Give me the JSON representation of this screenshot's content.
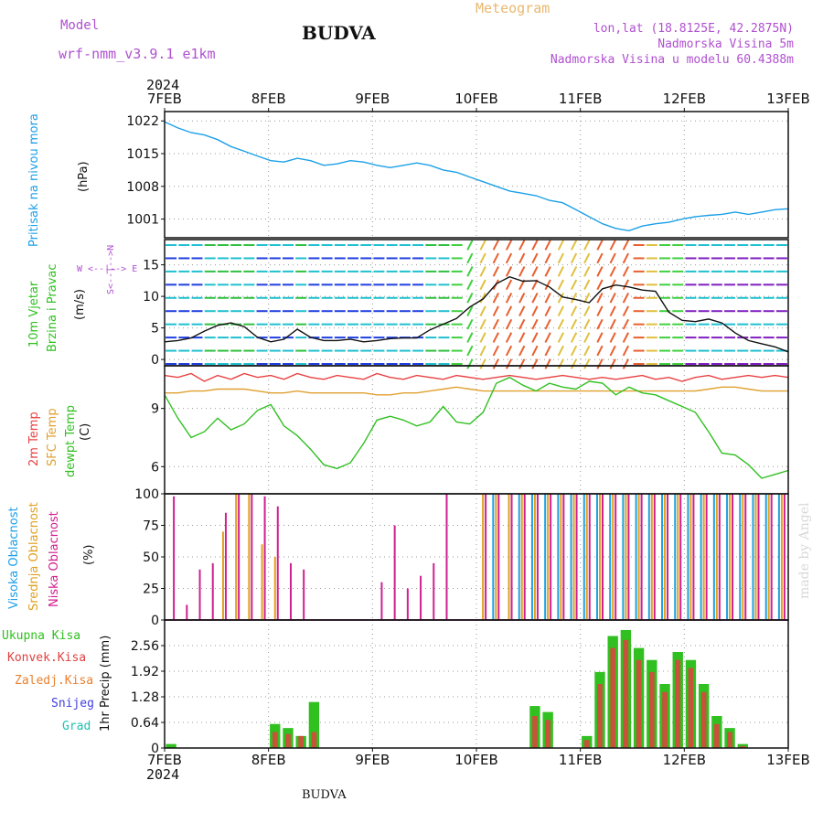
{
  "header": {
    "model_label": "Model",
    "model_name": "wrf-nmm_v3.9.1 e1km",
    "station": "BUDVA",
    "meteogram": "Meteogram",
    "lonlat": "lon,lat (18.8125E, 42.2875N)",
    "elevation": "Nadmorska Visina 5m",
    "model_elevation": "Nadmorska Visina u modelu 60.4388m",
    "footer_station": "BUDVA",
    "watermark": "made by Angel"
  },
  "time_axis": {
    "year": "2024",
    "labels": [
      "7FEB",
      "8FEB",
      "9FEB",
      "10FEB",
      "11FEB",
      "12FEB",
      "13FEB"
    ]
  },
  "panel_labels": {
    "pressure": "Pritisak na nivou mora",
    "pressure_unit": "(hPa)",
    "wind_line1": "10m Vjetar",
    "wind_line2": "Brzina i Pravac",
    "wind_unit": "(m/s)",
    "compass": "W <--|--> E",
    "compass_n": "N",
    "compass_s": "S",
    "temp_2m": "2m Temp",
    "temp_sfc": "SFC Temp",
    "temp_dew": "dewpt Temp",
    "temp_unit": "(C)",
    "cloud_high": "Visoka Oblacnost",
    "cloud_mid": "Srednja Oblacnost",
    "cloud_low": "Niska Oblacnost",
    "cloud_unit": "(%)",
    "precip_unit": "1hr Precip (mm)",
    "precip_legend": [
      "Ukupna Kisa",
      "Konvek.Kisa",
      "Zaledj.Kisa",
      "Snijeg",
      "Grad"
    ]
  },
  "colors": {
    "pressure": "#1ca0e8",
    "temp_2m": "#e84040",
    "temp_sfc": "#e0a030",
    "temp_dew": "#30c020",
    "cloud_high": "#20a0e0",
    "cloud_mid": "#e0a020",
    "cloud_low": "#d02090",
    "precip_total": "#30c020",
    "precip_conv": "#e04040",
    "precip_frz": "#e88030",
    "precip_snow": "#4040e0",
    "precip_grad": "#20c0b0",
    "label_purple": "#b050d0",
    "label_cyan": "#1ca0e8"
  },
  "chart_data": [
    {
      "type": "line",
      "panel": "pressure",
      "x_range": [
        "7FEB",
        "13FEB"
      ],
      "ylim": [
        997,
        1024
      ],
      "yticks": [
        "1022",
        "1015",
        "1008",
        "1001"
      ],
      "series": [
        {
          "values": [
            1021.8,
            1020.5,
            1019.5,
            1019,
            1018,
            1016.5,
            1015.5,
            1014.5,
            1013.5,
            1013.2,
            1014,
            1013.5,
            1012.5,
            1012.8,
            1013.5,
            1013.2,
            1012.5,
            1012,
            1012.5,
            1013,
            1012.5,
            1011.5,
            1011,
            1010,
            1009,
            1008,
            1007,
            1006.5,
            1006,
            1005,
            1004.5,
            1003,
            1001.5,
            1000,
            999,
            998.5,
            999.5,
            1000,
            1000.3,
            1001,
            1001.5,
            1001.8,
            1002,
            1002.5,
            1002,
            1002.5,
            1003,
            1003.2
          ]
        }
      ]
    },
    {
      "type": "line",
      "panel": "wind",
      "x_range": [
        "7FEB",
        "13FEB"
      ],
      "ylim": [
        -1,
        19
      ],
      "yticks": [
        "0",
        "5",
        "10",
        "15"
      ],
      "series": [
        {
          "values": [
            2.8,
            3,
            3.4,
            4.5,
            5.4,
            5.8,
            5.2,
            3.5,
            2.8,
            3.2,
            4.8,
            3.5,
            3,
            3,
            3.2,
            2.8,
            3,
            3.3,
            3.4,
            3.4,
            4.7,
            5.6,
            6.5,
            8.3,
            9.6,
            12,
            13.1,
            12.4,
            12.5,
            11.5,
            9.9,
            9.5,
            9,
            11.2,
            11.8,
            11.5,
            11,
            10.8,
            7.5,
            6.2,
            6,
            6.4,
            5.8,
            4.2,
            3,
            2.5,
            2,
            1.2
          ]
        }
      ]
    },
    {
      "type": "line",
      "panel": "temperature",
      "x_range": [
        "7FEB",
        "13FEB"
      ],
      "ylim": [
        4.6,
        11.2
      ],
      "yticks": [
        "9",
        "6"
      ],
      "series": [
        {
          "values": [
            10.7,
            10.6,
            10.8,
            10.4,
            10.7,
            10.5,
            10.8,
            10.6,
            10.7,
            10.5,
            10.8,
            10.6,
            10.5,
            10.7,
            10.6,
            10.5,
            10.8,
            10.6,
            10.5,
            10.7,
            10.6,
            10.5,
            10.7,
            10.6,
            10.5,
            10.6,
            10.7,
            10.6,
            10.5,
            10.6,
            10.7,
            10.6,
            10.5,
            10.6,
            10.5,
            10.6,
            10.7,
            10.5,
            10.6,
            10.4,
            10.6,
            10.7,
            10.5,
            10.6,
            10.7,
            10.6,
            10.7,
            10.6
          ]
        },
        {
          "values": [
            9.8,
            9.8,
            9.9,
            9.9,
            10,
            10,
            10,
            9.9,
            9.8,
            9.8,
            9.9,
            9.8,
            9.8,
            9.8,
            9.8,
            9.8,
            9.7,
            9.7,
            9.8,
            9.8,
            9.9,
            10,
            10.1,
            10,
            9.9,
            9.9,
            9.9,
            9.9,
            9.9,
            9.9,
            9.9,
            9.9,
            9.9,
            9.9,
            9.9,
            9.9,
            9.9,
            9.9,
            9.9,
            9.9,
            9.9,
            10,
            10.1,
            10.1,
            10,
            9.9,
            9.9,
            9.9
          ]
        },
        {
          "values": [
            9.7,
            8.5,
            7.5,
            7.8,
            8.5,
            7.9,
            8.2,
            8.9,
            9.2,
            8.1,
            7.6,
            6.9,
            6.1,
            5.9,
            6.2,
            7.2,
            8.4,
            8.6,
            8.4,
            8.1,
            8.3,
            9.1,
            8.3,
            8.2,
            8.8,
            10.3,
            10.6,
            10.2,
            9.9,
            10.3,
            10.1,
            10,
            10.4,
            10.3,
            9.7,
            10.1,
            9.8,
            9.7,
            9.4,
            9.1,
            8.8,
            7.8,
            6.7,
            6.6,
            6.1,
            5.4,
            5.6,
            5.8
          ]
        }
      ]
    },
    {
      "type": "bar",
      "panel": "clouds",
      "x_range": [
        "7FEB",
        "13FEB"
      ],
      "ylim": [
        0,
        100
      ],
      "yticks": [
        "100",
        "75",
        "50",
        "25",
        "0"
      ],
      "note": "Hourly cloud cover percent for high, mid and low levels; near 100% from 10FEB morning to 13FEB",
      "series": [
        {
          "values": [
            0,
            0,
            0,
            0,
            0,
            0,
            0,
            0,
            0,
            0,
            0,
            0,
            0,
            0,
            0,
            0,
            0,
            0,
            0,
            0,
            0,
            0,
            0,
            0,
            0,
            100,
            0,
            100,
            100,
            100,
            100,
            100,
            100,
            100,
            100,
            100,
            100,
            100,
            100,
            100,
            100,
            100,
            100,
            100,
            100,
            100,
            100,
            100
          ]
        },
        {
          "values": [
            0,
            0,
            0,
            0,
            70,
            100,
            100,
            60,
            50,
            0,
            0,
            0,
            0,
            0,
            0,
            0,
            0,
            0,
            0,
            0,
            0,
            0,
            0,
            0,
            100,
            100,
            100,
            100,
            100,
            100,
            100,
            100,
            100,
            100,
            100,
            100,
            100,
            100,
            100,
            100,
            100,
            100,
            100,
            100,
            100,
            100,
            100,
            100
          ]
        },
        {
          "values": [
            98,
            12,
            40,
            45,
            85,
            100,
            100,
            98,
            90,
            45,
            40,
            0,
            0,
            0,
            0,
            0,
            30,
            75,
            25,
            35,
            45,
            100,
            0,
            0,
            100,
            100,
            100,
            100,
            100,
            100,
            100,
            100,
            100,
            100,
            100,
            100,
            100,
            100,
            100,
            100,
            100,
            100,
            100,
            100,
            100,
            100,
            100,
            100
          ]
        }
      ]
    },
    {
      "type": "bar",
      "panel": "precipitation",
      "x_range": [
        "7FEB",
        "13FEB"
      ],
      "ylim": [
        0,
        3.2
      ],
      "yticks": [
        "2.56",
        "1.92",
        "1.28",
        "0.64",
        "0"
      ],
      "series": [
        {
          "values": [
            0.1,
            0,
            0,
            0,
            0,
            0,
            0,
            0,
            0.6,
            0.5,
            0.3,
            1.15,
            0,
            0,
            0,
            0,
            0,
            0,
            0,
            0,
            0,
            0,
            0,
            0,
            0,
            0,
            0,
            0,
            1.05,
            0.9,
            0,
            0,
            0.3,
            1.9,
            2.8,
            2.95,
            2.5,
            2.2,
            1.6,
            2.4,
            2.2,
            1.6,
            0.8,
            0.5,
            0.1,
            0,
            0,
            0
          ]
        },
        {
          "values": [
            0,
            0,
            0,
            0,
            0,
            0,
            0,
            0,
            0.4,
            0.35,
            0.3,
            0.4,
            0,
            0,
            0,
            0,
            0,
            0,
            0,
            0,
            0,
            0,
            0,
            0,
            0,
            0,
            0,
            0,
            0.8,
            0.7,
            0,
            0,
            0.2,
            1.6,
            2.5,
            2.7,
            2.2,
            1.9,
            1.4,
            2.2,
            2,
            1.4,
            0.6,
            0.4,
            0.05,
            0,
            0,
            0
          ]
        }
      ]
    }
  ]
}
